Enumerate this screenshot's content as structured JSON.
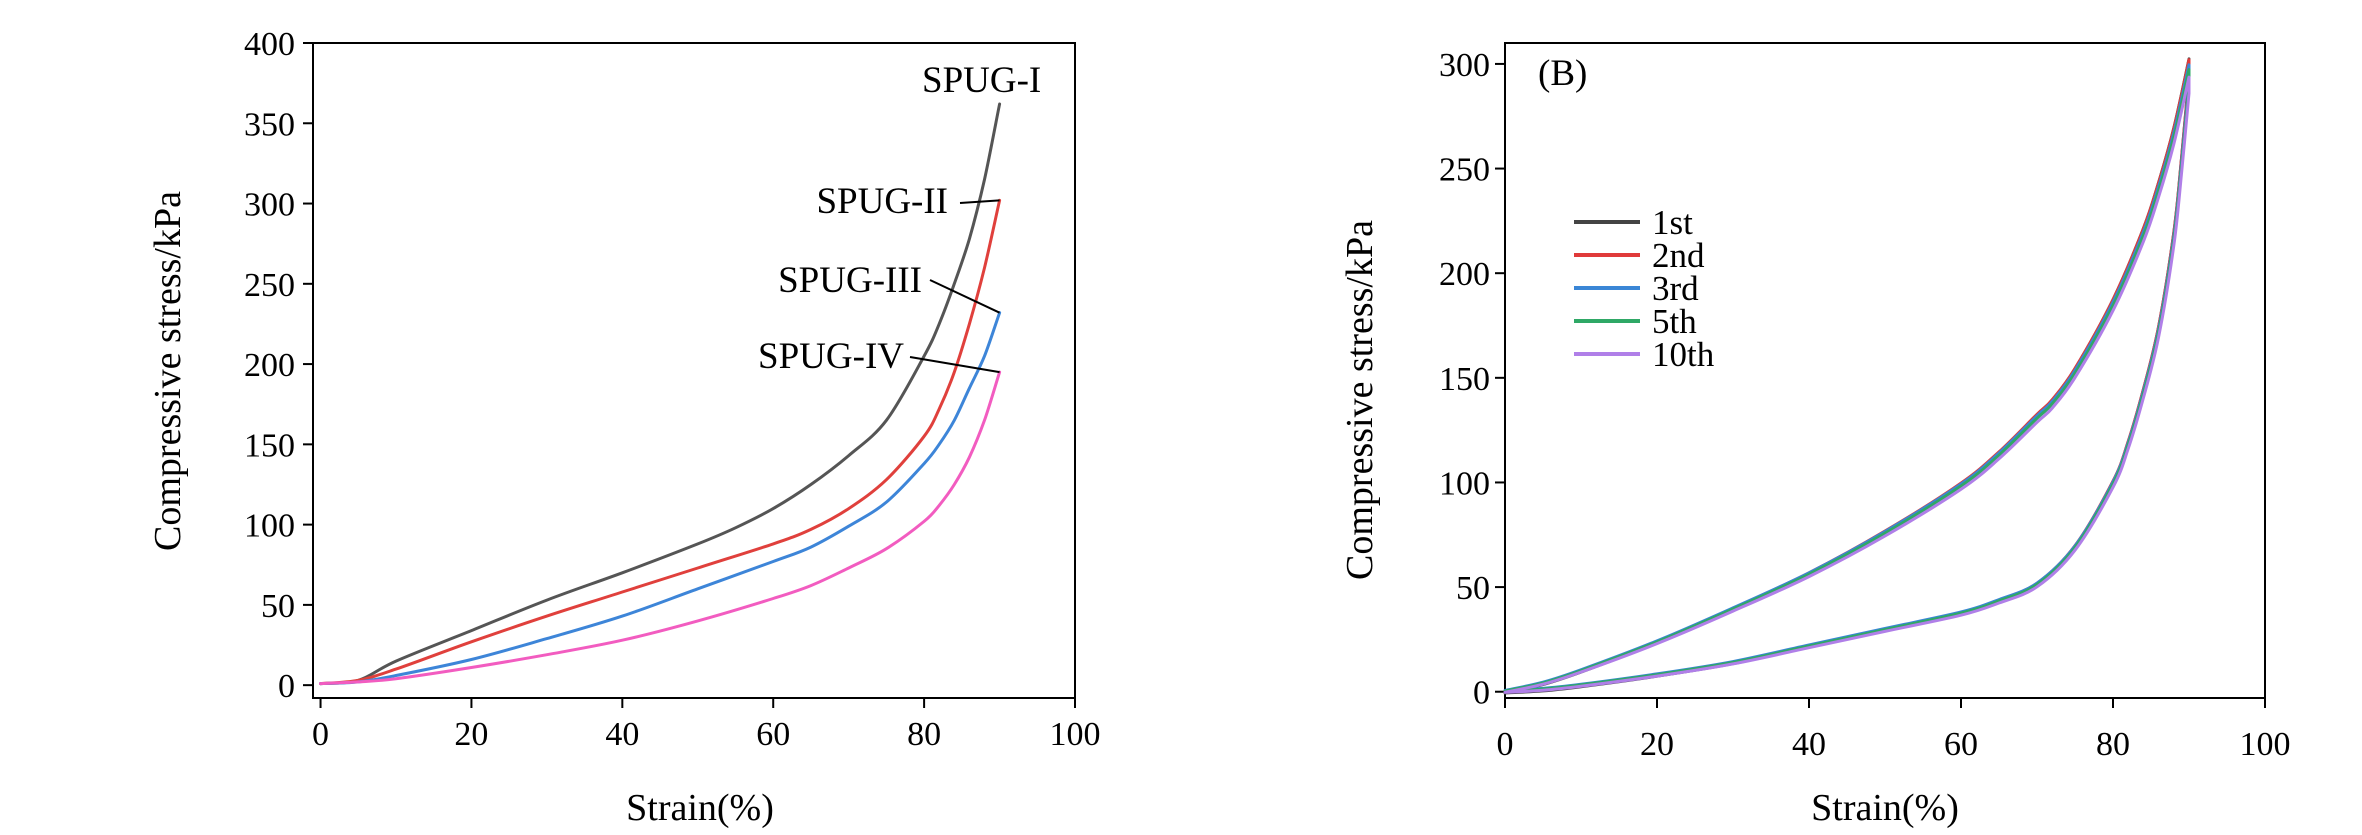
{
  "chart_data": [
    {
      "type": "line",
      "title": "",
      "xlabel": "Strain(%)",
      "ylabel": "Compressive stress/kPa",
      "xlim": [
        -1,
        100
      ],
      "ylim": [
        -8,
        400
      ],
      "xticks": [
        0,
        20,
        40,
        60,
        80,
        100
      ],
      "yticks": [
        0,
        50,
        100,
        150,
        200,
        250,
        300,
        350,
        400
      ],
      "grid": false,
      "annotation_style": "text label with leader line to end of curve",
      "series": [
        {
          "name": "SPUG-I",
          "color": "#555555",
          "x": [
            0,
            5,
            10,
            20,
            30,
            40,
            50,
            55,
            60,
            65,
            70,
            75,
            80,
            82,
            84,
            86,
            88,
            90
          ],
          "y": [
            1,
            3,
            15,
            34,
            53,
            70,
            88,
            98,
            110,
            125,
            143,
            165,
            205,
            225,
            250,
            278,
            315,
            362
          ]
        },
        {
          "name": "SPUG-II",
          "color": "#e0403c",
          "x": [
            0,
            5,
            10,
            20,
            30,
            40,
            50,
            60,
            65,
            70,
            75,
            80,
            82,
            84,
            86,
            88,
            90
          ],
          "y": [
            1,
            3,
            10,
            27,
            43,
            58,
            73,
            88,
            97,
            110,
            128,
            155,
            172,
            195,
            225,
            260,
            302
          ]
        },
        {
          "name": "SPUG-III",
          "color": "#3d85d8",
          "x": [
            0,
            5,
            10,
            20,
            30,
            40,
            50,
            60,
            65,
            70,
            75,
            80,
            82,
            84,
            86,
            88,
            90
          ],
          "y": [
            1,
            2,
            6,
            16,
            29,
            43,
            60,
            77,
            86,
            99,
            114,
            138,
            150,
            165,
            185,
            205,
            232
          ]
        },
        {
          "name": "SPUG-IV",
          "color": "#f25cc0",
          "x": [
            0,
            5,
            10,
            20,
            30,
            40,
            50,
            60,
            65,
            70,
            75,
            80,
            82,
            84,
            86,
            88,
            90
          ],
          "y": [
            1,
            2,
            4,
            11,
            19,
            28,
            40,
            54,
            62,
            73,
            85,
            102,
            112,
            125,
            142,
            165,
            195
          ]
        }
      ],
      "annotations": [
        {
          "text": "SPUG-I",
          "series": "SPUG-I",
          "x": 90,
          "y": 362
        },
        {
          "text": "SPUG-II",
          "series": "SPUG-II",
          "x": 90,
          "y": 302
        },
        {
          "text": "SPUG-III",
          "series": "SPUG-III",
          "x": 90,
          "y": 232
        },
        {
          "text": "SPUG-IV",
          "series": "SPUG-IV",
          "x": 90,
          "y": 195
        }
      ]
    },
    {
      "type": "line",
      "panel_label": "(B)",
      "title": "",
      "xlabel": "Strain(%)",
      "ylabel": "Compressive stress/kPa",
      "xlim": [
        0,
        100
      ],
      "ylim": [
        -3,
        310
      ],
      "xticks": [
        0,
        20,
        40,
        60,
        80,
        100
      ],
      "yticks": [
        0,
        50,
        100,
        150,
        200,
        250,
        300
      ],
      "grid": false,
      "legend": {
        "placement": "left",
        "entries": [
          "1st",
          "2nd",
          "3rd",
          "5th",
          "10th"
        ]
      },
      "loading_curve": {
        "x": [
          0,
          5,
          10,
          20,
          30,
          40,
          50,
          60,
          65,
          70,
          72,
          75,
          80,
          84,
          86,
          88,
          90
        ],
        "y": [
          0,
          4,
          10,
          24,
          40,
          57,
          77,
          100,
          115,
          133,
          140,
          155,
          188,
          222,
          244,
          270,
          303
        ]
      },
      "unloading_curve": {
        "x": [
          90,
          89,
          88,
          86,
          84,
          82,
          80,
          75,
          70,
          65,
          60,
          50,
          40,
          30,
          20,
          10,
          5,
          0
        ],
        "y": [
          295,
          255,
          220,
          175,
          145,
          120,
          101,
          70,
          52,
          44,
          38,
          30,
          22,
          14,
          8,
          3,
          1,
          0
        ]
      },
      "series": [
        {
          "name": "1st",
          "color": "#444444",
          "peak_y": 303
        },
        {
          "name": "2nd",
          "color": "#e03a3a",
          "peak_y": 302
        },
        {
          "name": "3rd",
          "color": "#3a86d6",
          "peak_y": 299
        },
        {
          "name": "5th",
          "color": "#2fa866",
          "peak_y": 297
        },
        {
          "name": "10th",
          "color": "#b07fe8",
          "peak_y": 294
        }
      ]
    }
  ]
}
